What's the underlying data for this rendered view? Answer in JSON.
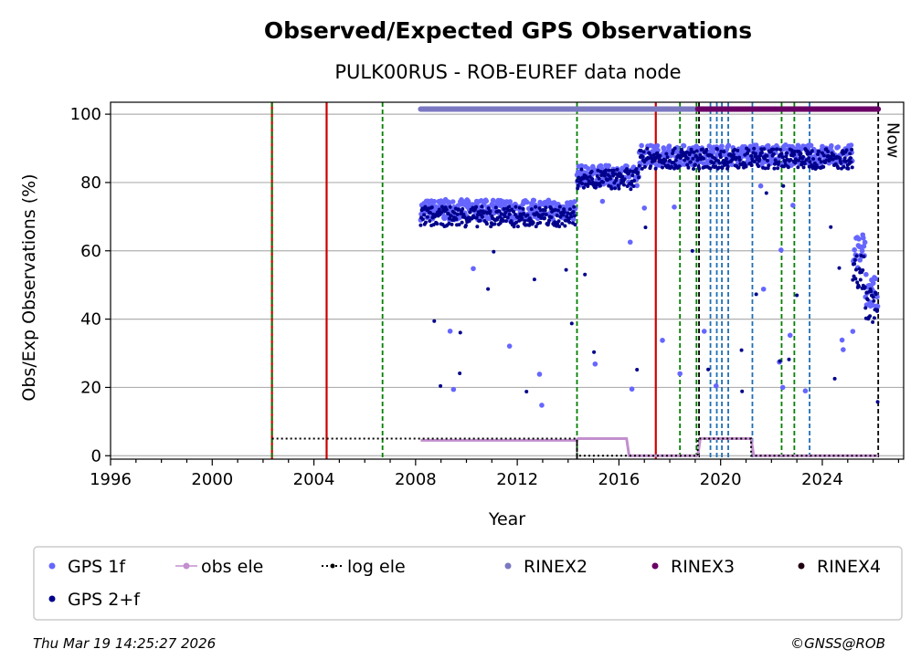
{
  "chart_data": {
    "type": "scatter",
    "title": "Observed/Expected GPS Observations",
    "subtitle": "PULK00RUS - ROB-EUREF data node",
    "xlabel": "Year",
    "ylabel": "Obs/Exp Observations (%)",
    "xlim": [
      1996,
      2027.2
    ],
    "ylim": [
      -1,
      103.5
    ],
    "xticks": [
      1996,
      2000,
      2004,
      2008,
      2012,
      2016,
      2020,
      2024
    ],
    "yticks": [
      0,
      20,
      40,
      60,
      80,
      100
    ],
    "grid": "horizontal",
    "now_label": "Now",
    "now_year": 2026.21,
    "series": [
      {
        "name": "GPS 1f",
        "color": "#6666ff",
        "marker": "dot",
        "segments": [
          {
            "x": [
              2008.2,
              2014.3
            ],
            "y_mean": 72,
            "spread": 3
          },
          {
            "x": [
              2014.35,
              2016.8
            ],
            "y_mean": 82,
            "spread": 3
          },
          {
            "x": [
              2016.8,
              2025.2
            ],
            "y_mean": 88,
            "spread": 3
          },
          {
            "x": [
              2025.2,
              2025.7
            ],
            "y_mean": 60,
            "spread": 6
          },
          {
            "x": [
              2025.7,
              2026.2
            ],
            "y_mean": 48,
            "spread": 6
          }
        ]
      },
      {
        "name": "GPS 2+f",
        "color": "#00008b",
        "marker": "dot",
        "segments": [
          {
            "x": [
              2008.2,
              2014.3
            ],
            "y_mean": 70,
            "spread": 3
          },
          {
            "x": [
              2014.35,
              2016.8
            ],
            "y_mean": 81,
            "spread": 3
          },
          {
            "x": [
              2016.8,
              2025.2
            ],
            "y_mean": 87,
            "spread": 3
          },
          {
            "x": [
              2025.2,
              2025.7
            ],
            "y_mean": 55,
            "spread": 6
          },
          {
            "x": [
              2025.7,
              2026.2
            ],
            "y_mean": 44,
            "spread": 5
          }
        ]
      },
      {
        "name": "obs ele",
        "color": "#c38fce",
        "marker": "line-dot",
        "x": [
          2008.2,
          2014.3,
          2014.4,
          2016.3,
          2016.4,
          2019.1,
          2019.2,
          2021.2,
          2021.3,
          2026.2
        ],
        "y": [
          4.5,
          4.5,
          5,
          5,
          0,
          0,
          5,
          5,
          0,
          0
        ]
      },
      {
        "name": "log ele",
        "color": "#000000",
        "marker": "dotted-line",
        "x": [
          2002.35,
          2014.35,
          2014.35,
          2019.1,
          2019.1,
          2021.2,
          2021.2,
          2026.2
        ],
        "y": [
          5,
          5,
          0,
          0,
          5,
          5,
          0,
          0
        ]
      },
      {
        "name": "RINEX2",
        "color": "#7b78c2",
        "marker": "bar",
        "x": [
          2008.2,
          2019.1
        ],
        "y": 101.5
      },
      {
        "name": "RINEX3",
        "color": "#6a0066",
        "marker": "bar",
        "x": [
          2019.1,
          2026.2
        ],
        "y": 101.5
      },
      {
        "name": "RINEX4",
        "color": "#1f0010",
        "marker": "bar",
        "x": [],
        "y": 101.5
      }
    ],
    "vertical_lines": [
      {
        "x": 2002.35,
        "color": "#cc0000",
        "style": "solid"
      },
      {
        "x": 2002.35,
        "color": "#008000",
        "style": "dashed"
      },
      {
        "x": 2004.5,
        "color": "#cc0000",
        "style": "solid"
      },
      {
        "x": 2006.7,
        "color": "#008000",
        "style": "dashed"
      },
      {
        "x": 2014.35,
        "color": "#008000",
        "style": "dashed"
      },
      {
        "x": 2014.35,
        "color": "#000000",
        "style": "dashed-bottom"
      },
      {
        "x": 2017.45,
        "color": "#cc0000",
        "style": "solid"
      },
      {
        "x": 2018.4,
        "color": "#008000",
        "style": "dashed"
      },
      {
        "x": 2019.05,
        "color": "#008000",
        "style": "dashed"
      },
      {
        "x": 2019.15,
        "color": "#000000",
        "style": "dashed"
      },
      {
        "x": 2019.6,
        "color": "#1f6fb5",
        "style": "dashed"
      },
      {
        "x": 2019.85,
        "color": "#1f6fb5",
        "style": "dashed"
      },
      {
        "x": 2020.05,
        "color": "#1f6fb5",
        "style": "dashed"
      },
      {
        "x": 2020.3,
        "color": "#1f6fb5",
        "style": "dashed"
      },
      {
        "x": 2021.25,
        "color": "#1f6fb5",
        "style": "dashed"
      },
      {
        "x": 2022.4,
        "color": "#008000",
        "style": "dashed"
      },
      {
        "x": 2022.9,
        "color": "#008000",
        "style": "dashed"
      },
      {
        "x": 2023.5,
        "color": "#1f6fb5",
        "style": "dashed"
      },
      {
        "x": 2026.2,
        "color": "#000000",
        "style": "dashed"
      }
    ],
    "legend": {
      "position": "bottom",
      "entries": [
        {
          "label": "GPS 1f",
          "color": "#6666ff",
          "kind": "dot"
        },
        {
          "label": "obs ele",
          "color": "#c38fce",
          "kind": "line-dot"
        },
        {
          "label": "log ele",
          "color": "#000000",
          "kind": "dotted"
        },
        {
          "label": "RINEX2",
          "color": "#7b78c2",
          "kind": "dot"
        },
        {
          "label": "RINEX3",
          "color": "#6a0066",
          "kind": "dot"
        },
        {
          "label": "RINEX4",
          "color": "#1f0010",
          "kind": "dot"
        },
        {
          "label": "GPS 2+f",
          "color": "#00008b",
          "kind": "dot"
        }
      ]
    }
  },
  "footer": {
    "timestamp": "Thu Mar 19 14:25:27 2026",
    "copyright": "©GNSS@ROB"
  }
}
